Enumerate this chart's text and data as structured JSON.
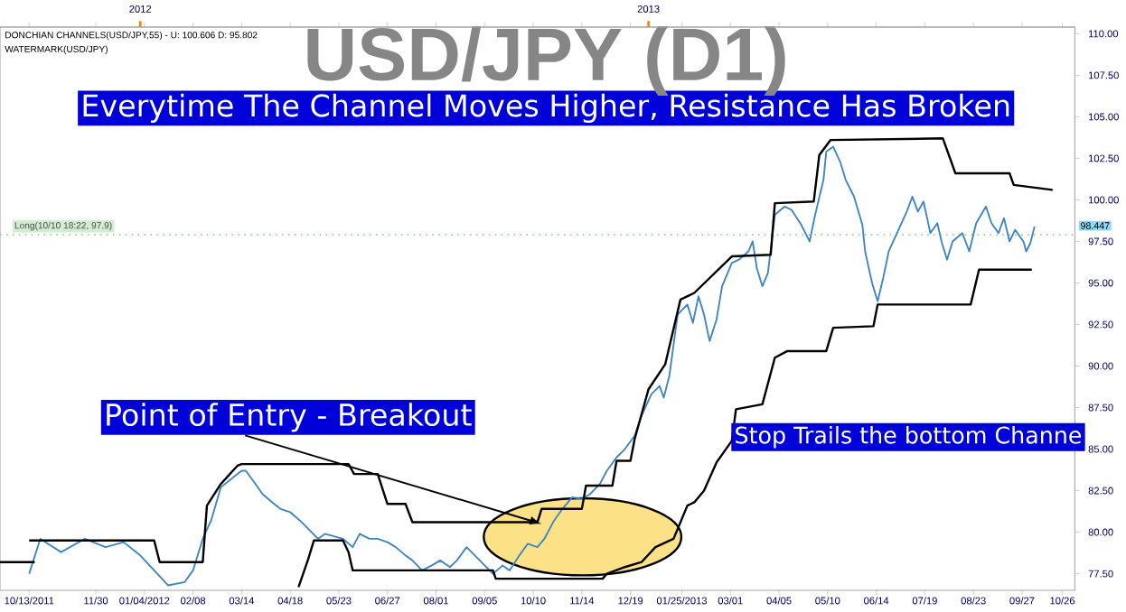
{
  "chart_data": {
    "type": "line",
    "title": "USD/JPY (D1)",
    "annotations": [
      "Everytime The Channel Moves Higher, Resistance Has Broken",
      {
        "text": "Point of Entry - Breakout",
        "x": "2012-10-16",
        "y": 80.5
      },
      "Stop Trails the bottom Channe",
      "DONCHIAN CHANNELS(USD/JPY,55) -  U: 100.606  D: 95.802",
      "WATERMARK(USD/JPY)",
      {
        "text": "98.447",
        "y": 98.447
      }
    ],
    "xlim": [
      "2011-09-22",
      "2013-11-04"
    ],
    "ylim": [
      76.5,
      110.4
    ],
    "xticks": [
      {
        "value": "2011-10-13",
        "label": "10/13/2011"
      },
      {
        "value": "2011-11-30",
        "label": "11/30"
      },
      {
        "value": "2012-01-04",
        "label": "01/04/2012"
      },
      {
        "value": "2012-02-08",
        "label": "02/08"
      },
      {
        "value": "2012-03-14",
        "label": "03/14"
      },
      {
        "value": "2012-04-18",
        "label": "04/18"
      },
      {
        "value": "2012-05-23",
        "label": "05/23"
      },
      {
        "value": "2012-06-27",
        "label": "06/27"
      },
      {
        "value": "2012-08-01",
        "label": "08/01"
      },
      {
        "value": "2012-09-05",
        "label": "09/05"
      },
      {
        "value": "2012-10-10",
        "label": "10/10"
      },
      {
        "value": "2012-11-14",
        "label": "11/14"
      },
      {
        "value": "2012-12-19",
        "label": "12/19"
      },
      {
        "value": "2013-01-25",
        "label": "01/25/2013"
      },
      {
        "value": "2013-03-01",
        "label": "03/01"
      },
      {
        "value": "2013-04-05",
        "label": "04/05"
      },
      {
        "value": "2013-05-10",
        "label": "05/10"
      },
      {
        "value": "2013-06-14",
        "label": "06/14"
      },
      {
        "value": "2013-07-19",
        "label": "07/19"
      },
      {
        "value": "2013-08-23",
        "label": "08/23"
      },
      {
        "value": "2013-09-27",
        "label": "09/27"
      },
      {
        "value": "2013-10-26",
        "label": "10/26"
      }
    ],
    "x2lim": [
      "2011-09-22",
      "2013-11-04"
    ],
    "x2ticks": [
      "2012",
      "2013"
    ],
    "yticks": [
      {
        "value": 77.5,
        "label": "77.50"
      },
      {
        "value": 80,
        "label": "80.00"
      },
      {
        "value": 82.5,
        "label": "82.50"
      },
      {
        "value": 85,
        "label": "85.00"
      },
      {
        "value": 87.5,
        "label": "87.50"
      },
      {
        "value": 90,
        "label": "90.00"
      },
      {
        "value": 92.5,
        "label": "92.50"
      },
      {
        "value": 95,
        "label": "95.00"
      },
      {
        "value": 97.5,
        "label": "97.50"
      },
      {
        "value": 100,
        "label": "100.00"
      },
      {
        "value": 102.5,
        "label": "102.50"
      },
      {
        "value": 105,
        "label": "105.00"
      },
      {
        "value": 107.5,
        "label": "107.50"
      },
      {
        "value": 110,
        "label": "110.00"
      }
    ],
    "ref_lines": [
      {
        "axis": "y",
        "value": 97.9,
        "label": "Long(10/10 18:22, 97.9)",
        "color": "#8fd18f",
        "line_style": "dotted"
      }
    ],
    "series": [
      {
        "color": "#3d85c6",
        "x": [
          "2011-10-13",
          "2011-10-21",
          "2011-11-05",
          "2011-11-22",
          "2011-12-07",
          "2011-12-20",
          "2012-01-01",
          "2012-01-11",
          "2012-01-21",
          "2012-02-02",
          "2012-02-08",
          "2012-02-15",
          "2012-02-21",
          "2012-02-28",
          "2012-03-08",
          "2012-03-14",
          "2012-03-17",
          "2012-03-24",
          "2012-03-29",
          "2012-04-05",
          "2012-04-11",
          "2012-04-18",
          "2012-04-25",
          "2012-05-01",
          "2012-05-08",
          "2012-05-13",
          "2012-05-26",
          "2012-06-02",
          "2012-06-07",
          "2012-06-14",
          "2012-06-20",
          "2012-06-27",
          "2012-07-03",
          "2012-07-10",
          "2012-07-15",
          "2012-07-22",
          "2012-07-29",
          "2012-08-04",
          "2012-08-11",
          "2012-08-16",
          "2012-08-23",
          "2012-08-29",
          "2012-09-05",
          "2012-09-11",
          "2012-09-18",
          "2012-09-23",
          "2012-09-30",
          "2012-10-06",
          "2012-10-13",
          "2012-10-18",
          "2012-10-25",
          "2012-10-31",
          "2012-11-07",
          "2012-11-14",
          "2012-11-20",
          "2012-11-27",
          "2012-12-02",
          "2012-12-09",
          "2012-12-15",
          "2012-12-22",
          "2012-12-27",
          "2013-01-03",
          "2013-01-09",
          "2013-01-12",
          "2013-01-16",
          "2013-01-22",
          "2013-01-29",
          "2013-02-02",
          "2013-02-06",
          "2013-02-10",
          "2013-02-14",
          "2013-02-19",
          "2013-02-23",
          "2013-03-02",
          "2013-03-07",
          "2013-03-14",
          "2013-03-17",
          "2013-03-20",
          "2013-03-24",
          "2013-03-28",
          "2013-04-02",
          "2013-04-09",
          "2013-04-14",
          "2013-04-21",
          "2013-04-27",
          "2013-05-01",
          "2013-05-07",
          "2013-05-09",
          "2013-05-14",
          "2013-05-19",
          "2013-05-23",
          "2013-05-29",
          "2013-06-04",
          "2013-06-06",
          "2013-06-11",
          "2013-06-15",
          "2013-06-19",
          "2013-06-23",
          "2013-06-30",
          "2013-07-06",
          "2013-07-10",
          "2013-07-14",
          "2013-07-18",
          "2013-07-23",
          "2013-07-28",
          "2013-07-31",
          "2013-08-04",
          "2013-08-08",
          "2013-08-15",
          "2013-08-20",
          "2013-08-25",
          "2013-09-01",
          "2013-09-05",
          "2013-09-10",
          "2013-09-14",
          "2013-09-18",
          "2013-09-22",
          "2013-09-28",
          "2013-09-30",
          "2013-10-03",
          "2013-10-06"
        ],
        "values": [
          77.5,
          79.6,
          78.8,
          79.6,
          79.1,
          79.4,
          78.6,
          77.7,
          76.8,
          77.0,
          77.7,
          79.6,
          80.7,
          82.7,
          83.3,
          83.7,
          83.7,
          82.9,
          82.3,
          81.8,
          81.4,
          81.2,
          80.7,
          80.2,
          79.6,
          79.9,
          79.6,
          79.1,
          79.9,
          79.6,
          79.6,
          79.4,
          79.1,
          78.6,
          78.3,
          77.7,
          78.0,
          78.3,
          77.9,
          78.3,
          79.1,
          78.6,
          78.0,
          77.5,
          78.0,
          77.7,
          78.6,
          79.3,
          79.1,
          79.6,
          80.7,
          81.4,
          82.1,
          82.0,
          82.3,
          82.9,
          83.7,
          84.5,
          85.0,
          85.8,
          87.0,
          88.3,
          88.8,
          88.1,
          89.4,
          93.1,
          93.7,
          92.6,
          94.2,
          93.1,
          91.5,
          92.8,
          94.8,
          96.2,
          96.4,
          96.9,
          97.5,
          95.9,
          94.8,
          95.6,
          99.1,
          99.6,
          99.4,
          98.5,
          97.5,
          99.1,
          101.2,
          102.9,
          103.2,
          102.3,
          101.2,
          100.2,
          98.5,
          96.9,
          95.0,
          93.9,
          95.3,
          96.9,
          98.2,
          99.3,
          100.2,
          99.3,
          99.9,
          98.0,
          98.6,
          97.5,
          96.4,
          97.5,
          98.0,
          96.9,
          98.6,
          99.6,
          98.6,
          98.0,
          98.9,
          97.5,
          98.2,
          97.5,
          96.9,
          97.4,
          98.4
        ]
      },
      {
        "color": "#000000",
        "x": [
          "2011-10-13",
          "2012-01-11",
          "2012-01-15",
          "2012-02-15",
          "2012-02-18",
          "2012-02-28",
          "2012-03-11",
          "2012-03-14",
          "2012-05-30",
          "2012-06-03",
          "2012-06-20",
          "2012-06-27",
          "2012-07-10",
          "2012-07-15",
          "2012-10-13",
          "2012-10-16",
          "2012-11-14",
          "2012-11-17",
          "2012-12-06",
          "2012-12-09",
          "2012-12-19",
          "2012-12-22",
          "2013-01-01",
          "2013-01-13",
          "2013-01-24",
          "2013-02-03",
          "2013-03-02",
          "2013-03-30",
          "2013-04-02",
          "2013-04-30",
          "2013-05-04",
          "2013-05-12",
          "2013-08-01",
          "2013-08-10",
          "2013-09-18",
          "2013-09-21",
          "2013-10-19"
        ],
        "values": [
          79.5,
          79.5,
          78.2,
          78.2,
          81.6,
          82.9,
          84.0,
          84.1,
          84.1,
          83.5,
          83.5,
          81.7,
          81.7,
          80.6,
          80.6,
          81.4,
          81.4,
          82.8,
          82.8,
          84.3,
          84.3,
          85.6,
          88.6,
          90.1,
          94.0,
          94.4,
          96.6,
          96.7,
          99.8,
          99.9,
          102.7,
          103.6,
          103.7,
          101.6,
          101.6,
          100.9,
          100.6
        ]
      },
      {
        "color": "#000000",
        "x": [
          "2011-09-22",
          "2011-10-17",
          "2011-10-19",
          "2012-04-24",
          "2012-05-01",
          "2012-05-05",
          "2012-05-26",
          "2012-05-30",
          "2012-06-02",
          "2012-09-11",
          "2012-09-13",
          "2012-11-29",
          "2012-12-02",
          "2012-12-15",
          "2012-12-27",
          "2013-01-06",
          "2013-01-19",
          "2013-01-29",
          "2013-02-03",
          "2013-02-10",
          "2013-02-19",
          "2013-03-02",
          "2013-03-05",
          "2013-03-24",
          "2013-04-02",
          "2013-04-11",
          "2013-05-09",
          "2013-05-14",
          "2013-06-12",
          "2013-06-15",
          "2013-08-21",
          "2013-08-27",
          "2013-10-04"
        ],
        "values": [
          78.2,
          78.2,
          null,
          76.7,
          78.4,
          79.5,
          79.5,
          78.8,
          77.7,
          77.7,
          77.2,
          77.2,
          77.5,
          77.9,
          78.2,
          79.1,
          79.6,
          81.6,
          81.8,
          82.5,
          84.2,
          85.5,
          87.4,
          87.7,
          90.5,
          90.9,
          90.9,
          92.3,
          92.4,
          93.7,
          93.7,
          95.8,
          95.8
        ]
      }
    ],
    "marker": "none",
    "line_style": "solid"
  }
}
